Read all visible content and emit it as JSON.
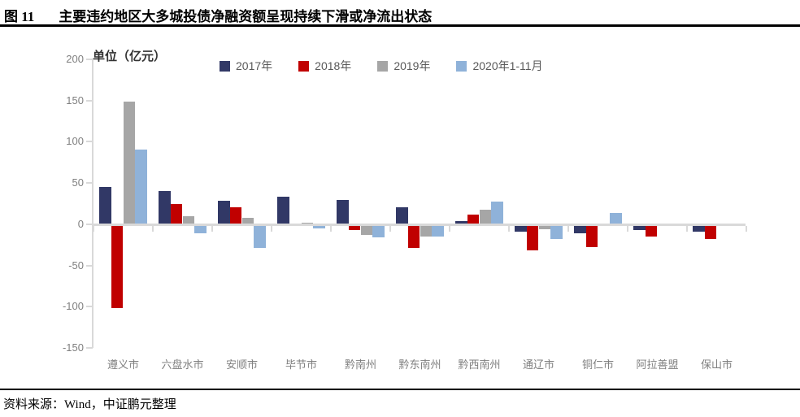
{
  "header": {
    "figure_label": "图 11",
    "title": "主要违约地区大多城投债净融资额呈现持续下滑或净流出状态"
  },
  "chart_data": {
    "type": "bar",
    "title": "主要违约地区大多城投债净融资额呈现持续下滑或净流出状态",
    "unit_label": "单位（亿元）",
    "ylabel": "亿元",
    "xlabel": "",
    "grid": false,
    "legend_position": "top",
    "ylim": [
      -150,
      200
    ],
    "yticks": [
      200,
      150,
      100,
      50,
      0,
      -50,
      -100,
      -150
    ],
    "categories": [
      "遵义市",
      "六盘水市",
      "安顺市",
      "毕节市",
      "黔南州",
      "黔东南州",
      "黔西南州",
      "通辽市",
      "铜仁市",
      "阿拉善盟",
      "保山市"
    ],
    "series": [
      {
        "name": "2017年",
        "color": "#313866",
        "values": [
          44,
          39,
          27,
          32,
          28,
          20,
          3,
          -7,
          -9,
          -5,
          -7
        ]
      },
      {
        "name": "2018年",
        "color": "#C00000",
        "values": [
          -100,
          24,
          20,
          0,
          -5,
          -27,
          11,
          -30,
          -26,
          -13,
          -16
        ]
      },
      {
        "name": "2019年",
        "color": "#A6A6A6",
        "values": [
          148,
          9,
          7,
          1,
          -11,
          -13,
          17,
          -4,
          0,
          0,
          0
        ]
      },
      {
        "name": "2020年1-11月",
        "color": "#8FB2D9",
        "values": [
          90,
          -9,
          -27,
          -3,
          -14,
          -13,
          26,
          -16,
          13,
          0,
          0
        ]
      }
    ]
  },
  "footer": {
    "source": "资料来源：Wind，中证鹏元整理"
  }
}
